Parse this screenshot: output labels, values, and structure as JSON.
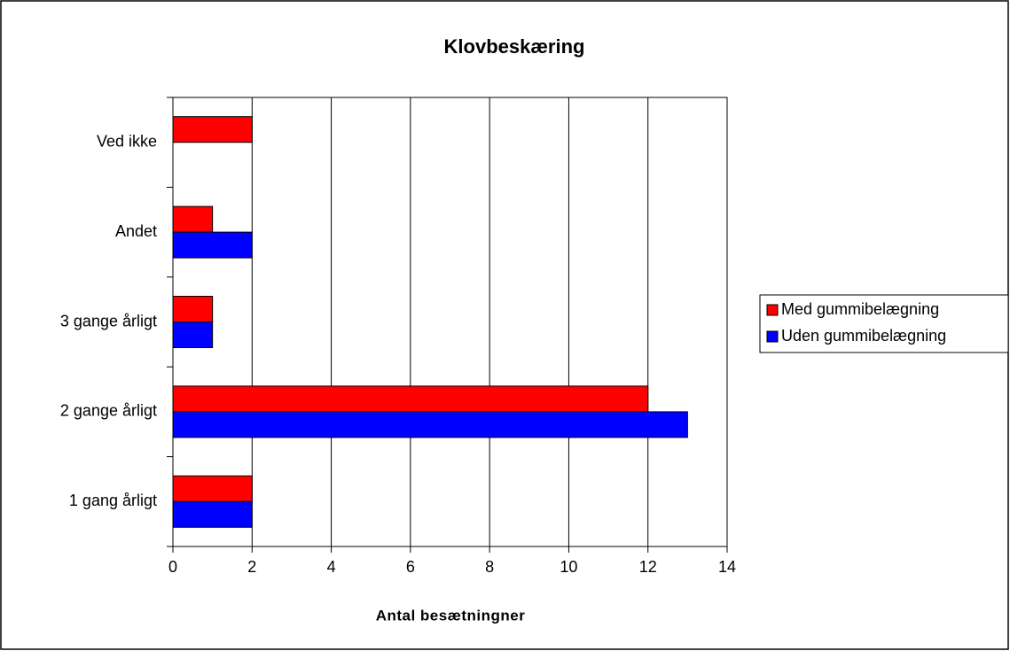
{
  "chart_data": {
    "type": "bar",
    "orientation": "horizontal",
    "title": "Klovbeskæring",
    "x_label": "Antal besætningner",
    "categories": [
      "Ved ikke",
      "Andet",
      "3 gange årligt",
      "2 gange årligt",
      "1 gang årligt"
    ],
    "series": [
      {
        "name": "Med gummibelægning",
        "color": "#ff0000",
        "values": [
          2,
          1,
          1,
          12,
          2
        ]
      },
      {
        "name": "Uden gummibelægning",
        "color": "#0000ff",
        "values": [
          0,
          2,
          1,
          13,
          2
        ]
      }
    ],
    "xlim": [
      0,
      14
    ],
    "xticks": [
      0,
      2,
      4,
      6,
      8,
      10,
      12,
      14
    ],
    "grid": true,
    "legend": "right"
  }
}
